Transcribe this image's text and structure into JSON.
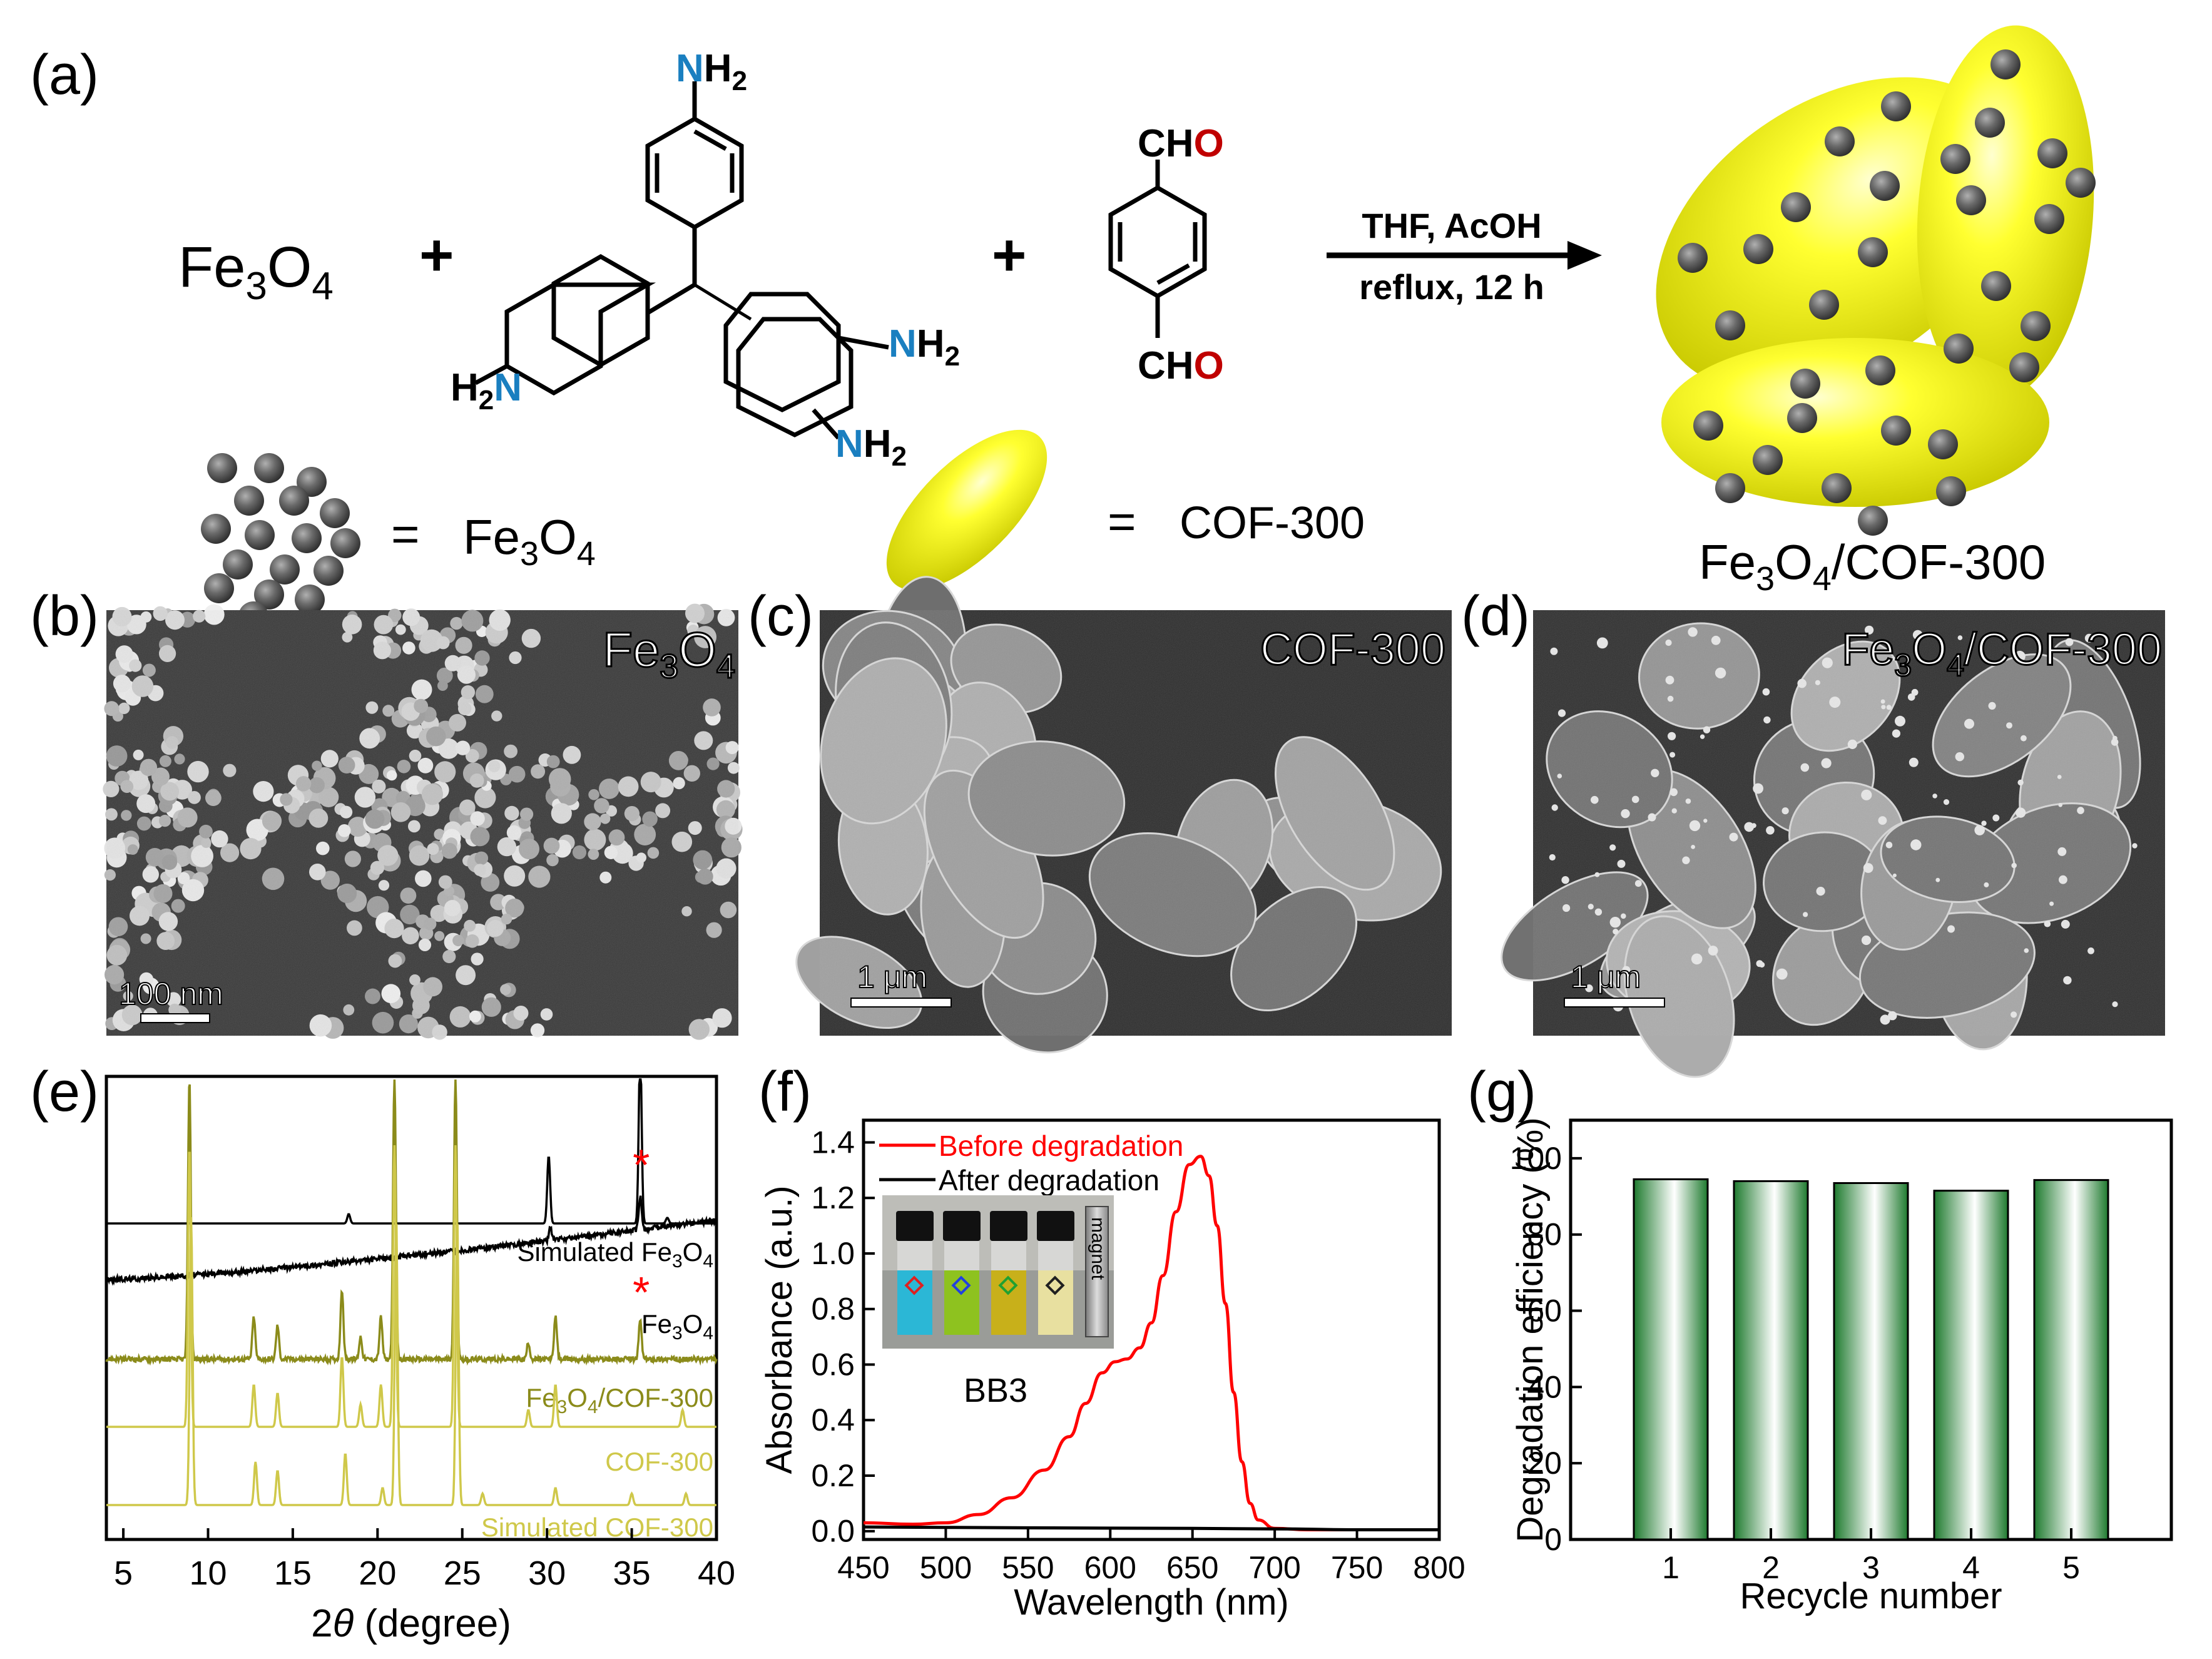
{
  "panel_labels": {
    "a": "(a)",
    "b": "(b)",
    "c": "(c)",
    "d": "(d)",
    "e": "(e)",
    "f": "(f)",
    "g": "(g)"
  },
  "scheme": {
    "reactant_fe3o4": {
      "base": "Fe",
      "sub1": "3",
      "mid": "O",
      "sub2": "4"
    },
    "plus": "+",
    "amine_label": {
      "n": "N",
      "h": "H",
      "sub": "2"
    },
    "aldehyde_label": {
      "c": "CH",
      "o": "O"
    },
    "conditions_top": "THF, AcOH",
    "conditions_bottom": "reflux, 12 h",
    "legend_equals": "=",
    "legend_fe3o4": {
      "base": "Fe",
      "sub1": "3",
      "mid": "O",
      "sub2": "4"
    },
    "legend_cof": "COF-300",
    "product_label": {
      "base": "Fe",
      "sub1": "3",
      "mid": "O",
      "sub2": "4",
      "tail": "/COF-300"
    },
    "colors": {
      "nitrogen": "#1a7fc0",
      "oxygen": "#c00000",
      "cof": "#ffff00",
      "particle": "#555555"
    }
  },
  "sem": {
    "b": {
      "title": {
        "base": "Fe",
        "sub1": "3",
        "mid": "O",
        "sub2": "4"
      },
      "scale": "100 nm"
    },
    "c": {
      "title": "COF-300",
      "scale": "1 μm"
    },
    "d": {
      "title": {
        "base": "Fe",
        "sub1": "3",
        "mid": "O",
        "sub2": "4",
        "tail": "/COF-300"
      },
      "scale": "1 μm"
    }
  },
  "chart_data": [
    {
      "panel": "e",
      "type": "line",
      "xlabel": {
        "pre": "2",
        "italic": "θ",
        "post": " (degree)"
      },
      "xlim": [
        4,
        40
      ],
      "xticks": [
        5,
        10,
        15,
        20,
        25,
        30,
        35,
        40
      ],
      "series": [
        {
          "name": "Simulated Fe3O4",
          "label": {
            "base": "Simulated Fe",
            "sub1": "3",
            "mid": "O",
            "sub2": "4"
          },
          "color": "#000000",
          "peaks": [
            [
              18.3,
              0.05
            ],
            [
              30.1,
              0.36
            ],
            [
              35.5,
              0.95
            ],
            [
              37.1,
              0.03
            ]
          ]
        },
        {
          "name": "Fe3O4",
          "label": {
            "base": "Fe",
            "sub1": "3",
            "mid": "O",
            "sub2": "4"
          },
          "color": "#000000",
          "peaks": [
            [
              30.2,
              0.08
            ],
            [
              35.5,
              0.2
            ]
          ],
          "marker": "*",
          "marker_x": 35.5
        },
        {
          "name": "Fe3O4/COF-300",
          "label": {
            "base": "Fe",
            "sub1": "3",
            "mid": "O",
            "sub2": "4",
            "tail": "/COF-300"
          },
          "color": "#8b8b1a",
          "peaks": [
            [
              8.9,
              1.0
            ],
            [
              12.7,
              0.15
            ],
            [
              14.1,
              0.12
            ],
            [
              17.9,
              0.25
            ],
            [
              19.0,
              0.08
            ],
            [
              20.2,
              0.15
            ],
            [
              21.0,
              1.0
            ],
            [
              24.6,
              1.0
            ],
            [
              28.9,
              0.06
            ],
            [
              30.5,
              0.15
            ],
            [
              35.5,
              0.14
            ]
          ],
          "marker": "*",
          "marker_x": 35.5
        },
        {
          "name": "COF-300",
          "label": {
            "base": "COF-300"
          },
          "color": "#cfc84a",
          "peaks": [
            [
              8.9,
              1.0
            ],
            [
              12.7,
              0.15
            ],
            [
              14.1,
              0.12
            ],
            [
              17.9,
              0.25
            ],
            [
              19.0,
              0.08
            ],
            [
              20.2,
              0.15
            ],
            [
              21.0,
              1.0
            ],
            [
              24.6,
              1.0
            ],
            [
              28.9,
              0.06
            ],
            [
              30.5,
              0.15
            ],
            [
              38.0,
              0.06
            ]
          ]
        },
        {
          "name": "Simulated COF-300",
          "label": {
            "base": "Simulated COF-300"
          },
          "color": "#cfc84a",
          "peaks": [
            [
              9.0,
              1.0
            ],
            [
              12.8,
              0.15
            ],
            [
              14.1,
              0.12
            ],
            [
              18.1,
              0.18
            ],
            [
              20.3,
              0.06
            ],
            [
              21.1,
              1.0
            ],
            [
              24.7,
              1.0
            ],
            [
              26.2,
              0.04
            ],
            [
              30.5,
              0.06
            ],
            [
              35.0,
              0.04
            ],
            [
              38.2,
              0.04
            ]
          ]
        }
      ]
    },
    {
      "panel": "f",
      "type": "line",
      "xlabel": "Wavelength (nm)",
      "ylabel": "Absorbance (a.u.)",
      "xlim": [
        450,
        800
      ],
      "ylim": [
        -0.03,
        1.48
      ],
      "xticks": [
        450,
        500,
        550,
        600,
        650,
        700,
        750,
        800
      ],
      "yticks": [
        0.0,
        0.2,
        0.4,
        0.6,
        0.8,
        1.0,
        1.2,
        1.4
      ],
      "legend_position": "top-left",
      "series": [
        {
          "name": "Before degradation",
          "color": "#ff0000",
          "x": [
            450,
            480,
            500,
            520,
            540,
            560,
            575,
            585,
            595,
            603,
            610,
            618,
            625,
            632,
            640,
            648,
            655,
            660,
            665,
            670,
            675,
            680,
            685,
            690,
            700,
            720,
            750,
            800
          ],
          "y": [
            0.03,
            0.025,
            0.03,
            0.06,
            0.12,
            0.22,
            0.34,
            0.46,
            0.57,
            0.61,
            0.62,
            0.66,
            0.75,
            0.92,
            1.15,
            1.32,
            1.35,
            1.28,
            1.1,
            0.82,
            0.5,
            0.25,
            0.1,
            0.04,
            0.01,
            0.005,
            0.005,
            0.005
          ]
        },
        {
          "name": "After degradation",
          "color": "#000000",
          "x": [
            450,
            550,
            650,
            700,
            750,
            800
          ],
          "y": [
            0.015,
            0.012,
            0.01,
            0.008,
            0.005,
            0.005
          ]
        }
      ],
      "inset": {
        "caption": "BB3",
        "magnet_text": "magnet",
        "vials": [
          {
            "liquid": "#2bb7d6",
            "marker": "#e02020"
          },
          {
            "liquid": "#8ec21f",
            "marker": "#2040e0"
          },
          {
            "liquid": "#c8b01a",
            "marker": "#20a030"
          },
          {
            "liquid": "#e8e0a0",
            "marker": "#202020"
          }
        ]
      }
    },
    {
      "panel": "g",
      "type": "bar",
      "xlabel": "Recycle number",
      "ylabel": "Degradation efficiency (%)",
      "categories": [
        "1",
        "2",
        "3",
        "4",
        "5"
      ],
      "values": [
        94.5,
        94.0,
        93.5,
        91.5,
        94.3
      ],
      "ylim": [
        0,
        110
      ],
      "yticks": [
        0,
        20,
        40,
        60,
        80,
        100
      ],
      "bar_color": "#1e7a2e"
    }
  ]
}
